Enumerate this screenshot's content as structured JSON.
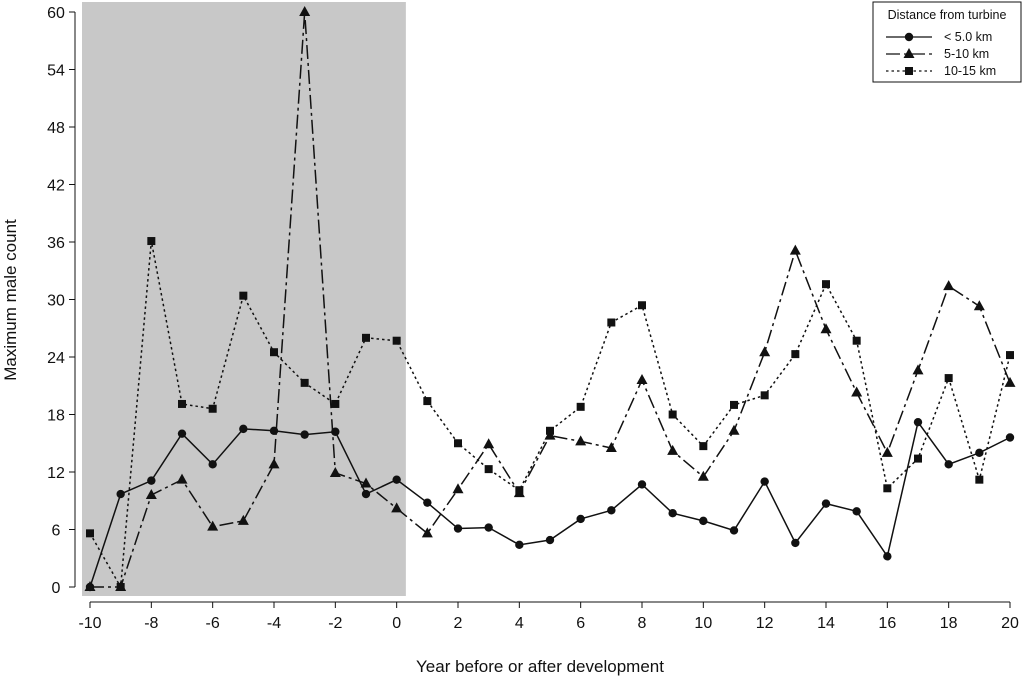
{
  "chart_data": {
    "type": "line",
    "title": "",
    "xlabel": "Year before or after development",
    "ylabel": "Maximum male count",
    "xlim": [
      -10,
      20
    ],
    "ylim": [
      0,
      60
    ],
    "xticks": [
      -10,
      -8,
      -6,
      -4,
      -2,
      0,
      2,
      4,
      6,
      8,
      10,
      12,
      14,
      16,
      18,
      20
    ],
    "yticks": [
      0,
      6,
      12,
      18,
      24,
      30,
      36,
      42,
      48,
      54,
      60
    ],
    "shaded_region": {
      "x": [
        -10,
        0.3
      ],
      "meaning": "pre-development",
      "color": "#c8c8c8"
    },
    "legend": {
      "title": "Distance from turbine",
      "placement": "top-right"
    },
    "x": [
      -10,
      -9,
      -8,
      -7,
      -6,
      -5,
      -4,
      -3,
      -2,
      -1,
      0,
      1,
      2,
      3,
      4,
      5,
      6,
      7,
      8,
      9,
      10,
      11,
      12,
      13,
      14,
      15,
      16,
      17,
      18,
      19,
      20
    ],
    "series": [
      {
        "name": "< 5.0 km",
        "marker": "circle",
        "dash": "solid",
        "values": [
          0,
          9.7,
          11.1,
          16.0,
          12.8,
          16.5,
          16.3,
          15.9,
          16.2,
          9.7,
          11.2,
          8.8,
          6.1,
          6.2,
          4.4,
          4.9,
          7.1,
          8.0,
          10.7,
          7.7,
          6.9,
          5.9,
          11.0,
          4.6,
          8.7,
          7.9,
          3.2,
          17.2,
          12.8,
          14.0,
          15.6
        ]
      },
      {
        "name": "5-10 km",
        "marker": "triangle",
        "dash": "longdash-dot",
        "values": [
          0,
          0,
          9.6,
          11.2,
          6.3,
          6.9,
          12.8,
          60,
          11.9,
          10.8,
          8.2,
          5.6,
          10.2,
          14.9,
          9.8,
          15.8,
          15.2,
          14.5,
          21.6,
          14.2,
          11.5,
          16.3,
          24.5,
          35.1,
          26.9,
          20.3,
          14.0,
          22.6,
          31.4,
          29.3,
          21.3
        ]
      },
      {
        "name": "10-15 km",
        "marker": "square",
        "dash": "dotted",
        "values": [
          5.6,
          0,
          36.1,
          19.1,
          18.6,
          30.4,
          24.5,
          21.3,
          19.1,
          26.0,
          25.7,
          19.4,
          15.0,
          12.3,
          10.1,
          16.3,
          18.8,
          27.6,
          29.4,
          18.0,
          14.7,
          19.0,
          20.0,
          24.3,
          31.6,
          25.7,
          10.3,
          13.4,
          21.8,
          11.2,
          24.2
        ]
      }
    ]
  }
}
